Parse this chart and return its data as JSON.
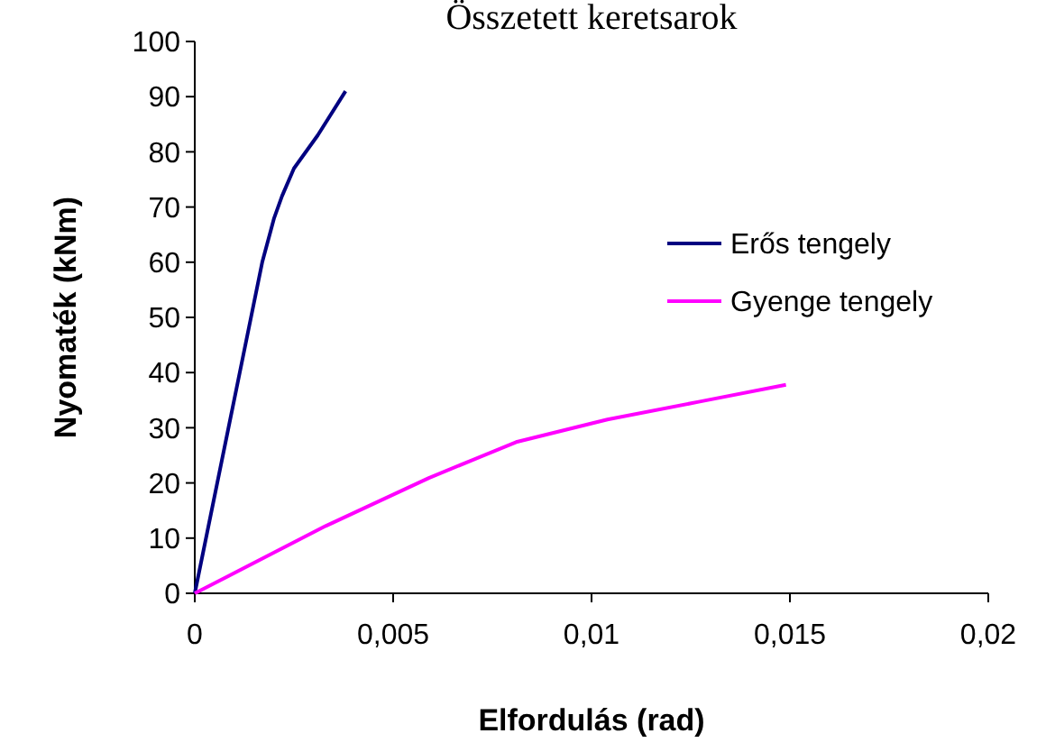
{
  "chart_data": {
    "type": "line",
    "title": "Összetett keretsarok",
    "xlabel": "Elfordulás (rad)",
    "ylabel": "Nyomaték (kNm)",
    "xlim": [
      0,
      0.02
    ],
    "xticks": [
      {
        "value": 0,
        "label": "0"
      },
      {
        "value": 0.005,
        "label": "0,005"
      },
      {
        "value": 0.01,
        "label": "0,01"
      },
      {
        "value": 0.015,
        "label": "0,015"
      },
      {
        "value": 0.02,
        "label": "0,02"
      }
    ],
    "ylim": [
      0,
      100
    ],
    "yticks": [
      0,
      10,
      20,
      30,
      40,
      50,
      60,
      70,
      80,
      90,
      100
    ],
    "grid": false,
    "legend": "right",
    "marker": "none",
    "line_style": "solid",
    "series": [
      {
        "name": "Erős tengely",
        "color": "#000080",
        "x": [
          0,
          0.0017,
          0.002,
          0.0022,
          0.0025,
          0.0031,
          0.0038
        ],
        "values": [
          0,
          60,
          68,
          72,
          77,
          83,
          91
        ]
      },
      {
        "name": "Gyenge tengely",
        "color": "#ff00ff",
        "x": [
          0,
          0.0033,
          0.0059,
          0.0081,
          0.0104,
          0.0127,
          0.0149
        ],
        "values": [
          0,
          12.2,
          20.9,
          27.4,
          31.5,
          34.7,
          37.8
        ]
      }
    ]
  }
}
